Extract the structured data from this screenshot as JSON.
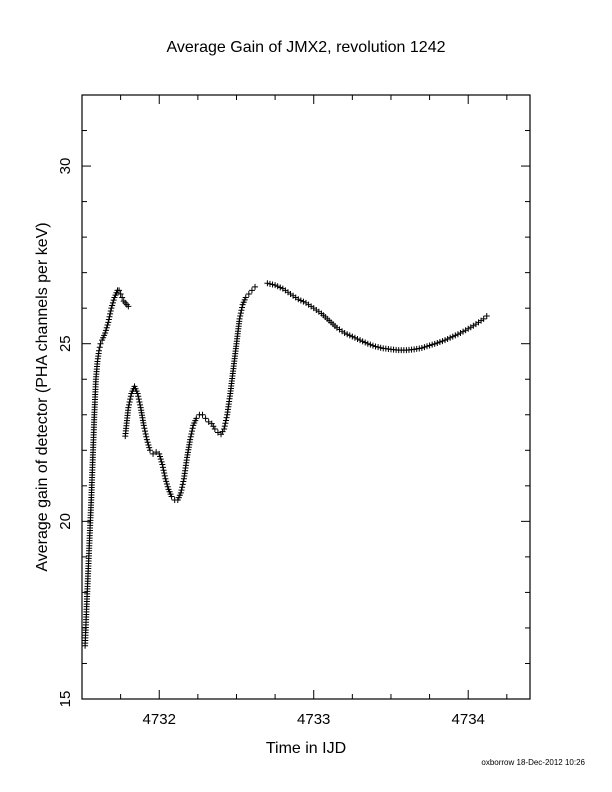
{
  "chart_data": {
    "type": "scatter",
    "title": "Average Gain of JMX2, revolution 1242",
    "xlabel": "Time in IJD",
    "ylabel": "Average gain of detector (PHA channels per keV)",
    "xlim": [
      4731.5,
      4734.4
    ],
    "ylim": [
      15,
      32
    ],
    "xticks": [
      4732,
      4733,
      4734
    ],
    "xtick_labels": [
      "4732",
      "4733",
      "4734"
    ],
    "yticks": [
      15,
      20,
      25,
      30
    ],
    "ytick_labels": [
      "15",
      "20",
      "25",
      "30"
    ],
    "marker": "plus",
    "grid": false,
    "series": [
      {
        "x": [
          4731.52,
          4731.53,
          4731.54,
          4731.55,
          4731.56,
          4731.57,
          4731.58,
          4731.59,
          4731.6,
          4731.61,
          4731.62,
          4731.63,
          4731.65,
          4731.67,
          4731.69,
          4731.71,
          4731.73,
          4731.74,
          4731.75,
          4731.76,
          4731.77,
          4731.78,
          4731.79,
          4731.8
        ],
        "y": [
          16.5,
          17.6,
          18.6,
          19.6,
          20.6,
          21.8,
          23.0,
          24.0,
          24.5,
          24.8,
          25.0,
          25.1,
          25.3,
          25.6,
          26.0,
          26.3,
          26.5,
          26.5,
          26.4,
          26.3,
          26.2,
          26.15,
          26.1,
          26.05
        ]
      },
      {
        "x": [
          4731.78,
          4731.8,
          4731.82,
          4731.84,
          4731.86,
          4731.88,
          4731.9,
          4731.92,
          4731.94,
          4731.96,
          4731.98,
          4732.0,
          4732.02,
          4732.04,
          4732.06,
          4732.08,
          4732.1,
          4732.12,
          4732.14,
          4732.16,
          4732.18,
          4732.2,
          4732.22,
          4732.24,
          4732.26,
          4732.28,
          4732.3,
          4732.32,
          4732.34,
          4732.36,
          4732.38,
          4732.4,
          4732.42,
          4732.44,
          4732.46,
          4732.48,
          4732.5,
          4732.52,
          4732.54,
          4732.56,
          4732.58,
          4732.6,
          4732.62
        ],
        "y": [
          22.4,
          23.2,
          23.6,
          23.8,
          23.6,
          23.2,
          22.7,
          22.3,
          22.0,
          21.9,
          21.95,
          21.9,
          21.6,
          21.2,
          20.9,
          20.7,
          20.6,
          20.6,
          20.8,
          21.2,
          21.8,
          22.3,
          22.7,
          22.9,
          23.0,
          23.0,
          22.9,
          22.8,
          22.75,
          22.6,
          22.5,
          22.45,
          22.6,
          23.0,
          23.6,
          24.3,
          25.0,
          25.7,
          26.1,
          26.3,
          26.4,
          26.5,
          26.6
        ]
      },
      {
        "x": [
          4732.7,
          4732.75,
          4732.8,
          4732.85,
          4732.9,
          4732.95,
          4733.0,
          4733.05,
          4733.1,
          4733.15,
          4733.2,
          4733.25,
          4733.3,
          4733.35,
          4733.4,
          4733.45,
          4733.5,
          4733.55,
          4733.6,
          4733.65,
          4733.7,
          4733.75,
          4733.8,
          4733.85,
          4733.9,
          4733.95,
          4734.0,
          4734.05,
          4734.1,
          4734.12
        ],
        "y": [
          26.7,
          26.65,
          26.55,
          26.4,
          26.25,
          26.15,
          26.0,
          25.85,
          25.65,
          25.45,
          25.3,
          25.2,
          25.1,
          25.0,
          24.92,
          24.87,
          24.84,
          24.82,
          24.82,
          24.84,
          24.88,
          24.95,
          25.02,
          25.1,
          25.2,
          25.3,
          25.42,
          25.55,
          25.7,
          25.78
        ]
      }
    ],
    "annotations": [
      "oxborrow 18-Dec-2012 10:26"
    ]
  }
}
